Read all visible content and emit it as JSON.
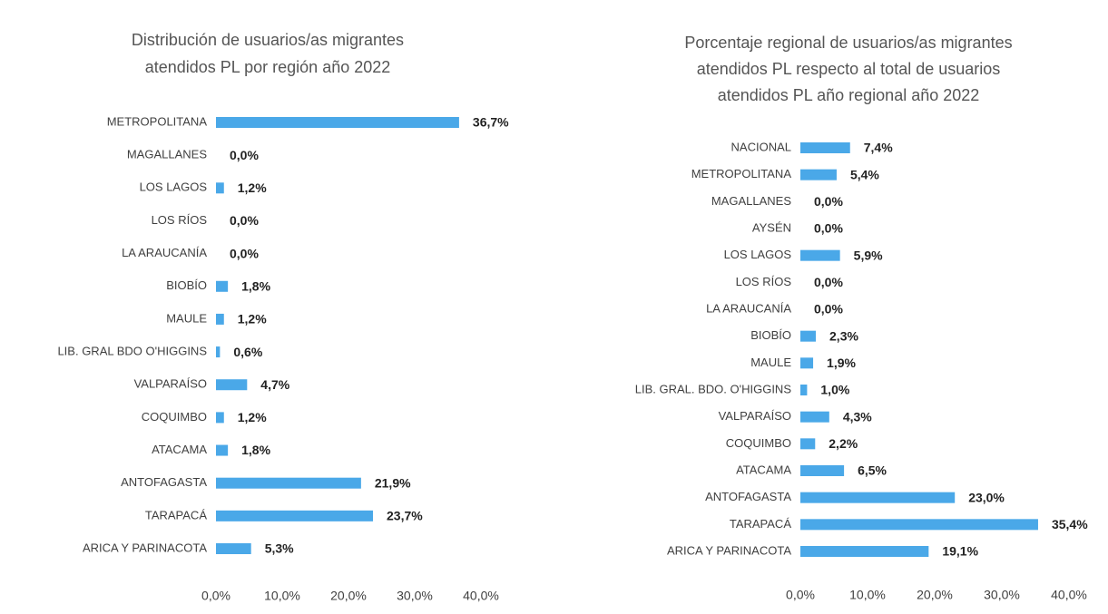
{
  "chart_data": [
    {
      "type": "bar",
      "orientation": "horizontal",
      "title": [
        "Distribución de usuarios/as migrantes",
        "atendidos PL por región año 2022"
      ],
      "categories": [
        "METROPOLITANA",
        "MAGALLANES",
        "LOS LAGOS",
        "LOS RÍOS",
        "LA ARAUCANÍA",
        "BIOBÍO",
        "MAULE",
        "LIB. GRAL BDO O'HIGGINS",
        "VALPARAÍSO",
        "COQUIMBO",
        "ATACAMA",
        "ANTOFAGASTA",
        "TARAPACÁ",
        "ARICA Y PARINACOTA"
      ],
      "values": [
        36.7,
        0.0,
        1.2,
        0.0,
        0.0,
        1.8,
        1.2,
        0.6,
        4.7,
        1.2,
        1.8,
        21.9,
        23.7,
        5.3
      ],
      "value_labels": [
        "36,7%",
        "0,0%",
        "1,2%",
        "0,0%",
        "0,0%",
        "1,8%",
        "1,2%",
        "0,6%",
        "4,7%",
        "1,2%",
        "1,8%",
        "21,9%",
        "23,7%",
        "5,3%"
      ],
      "color": "#4aa8e8",
      "xlim": [
        0,
        40
      ],
      "xticks": [
        {
          "value": 0,
          "label": "0,0%"
        },
        {
          "value": 10,
          "label": "10,0%"
        },
        {
          "value": 20,
          "label": "20,0%"
        },
        {
          "value": 30,
          "label": "30,0%"
        },
        {
          "value": 40,
          "label": "40,0%"
        }
      ]
    },
    {
      "type": "bar",
      "orientation": "horizontal",
      "title": [
        "Porcentaje regional de usuarios/as migrantes",
        "atendidos PL respecto al total de usuarios",
        "atendidos PL año regional año 2022"
      ],
      "categories": [
        "NACIONAL",
        "METROPOLITANA",
        "MAGALLANES",
        "AYSÉN",
        "LOS LAGOS",
        "LOS RÍOS",
        "LA ARAUCANÍA",
        "BIOBÍO",
        "MAULE",
        "LIB. GRAL. BDO. O'HIGGINS",
        "VALPARAÍSO",
        "COQUIMBO",
        "ATACAMA",
        "ANTOFAGASTA",
        "TARAPACÁ",
        "ARICA Y PARINACOTA"
      ],
      "values": [
        7.4,
        5.4,
        0.0,
        0.0,
        5.9,
        0.0,
        0.0,
        2.3,
        1.9,
        1.0,
        4.3,
        2.2,
        6.5,
        23.0,
        35.4,
        19.1
      ],
      "value_labels": [
        "7,4%",
        "5,4%",
        "0,0%",
        "0,0%",
        "5,9%",
        "0,0%",
        "0,0%",
        "2,3%",
        "1,9%",
        "1,0%",
        "4,3%",
        "2,2%",
        "6,5%",
        "23,0%",
        "35,4%",
        "19,1%"
      ],
      "color": "#4aa8e8",
      "xlim": [
        0,
        40
      ],
      "xticks": [
        {
          "value": 0,
          "label": "0,0%"
        },
        {
          "value": 10,
          "label": "10,0%"
        },
        {
          "value": 20,
          "label": "20,0%"
        },
        {
          "value": 30,
          "label": "30,0%"
        },
        {
          "value": 40,
          "label": "40,0%"
        }
      ]
    }
  ]
}
